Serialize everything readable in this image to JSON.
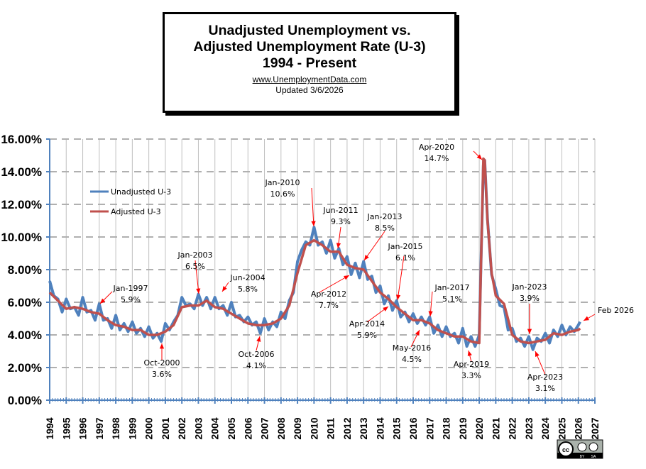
{
  "title_box": {
    "line1": "Unadjusted Unemployment vs.",
    "line2": "Adjusted Unemployment Rate (U-3)",
    "line3": "1994 - Present",
    "url": "www.UnemploymentData.com",
    "updated": "Updated  3/6/2026"
  },
  "license_badge": {
    "icon": "cc-by-sa-icon",
    "labels": [
      "BY",
      "SA"
    ]
  },
  "chart_data": {
    "type": "line",
    "title": "Unadjusted Unemployment vs. Adjusted Unemployment Rate (U-3) 1994 - Present",
    "xlabel": "",
    "ylabel": "",
    "xlim": [
      1994,
      2027
    ],
    "ylim": [
      0,
      16
    ],
    "grid": true,
    "legend_position": "top-left",
    "y_ticks": [
      "0.00%",
      "2.00%",
      "4.00%",
      "6.00%",
      "8.00%",
      "10.00%",
      "12.00%",
      "14.00%",
      "16.00%"
    ],
    "x_ticks": [
      "1994",
      "1995",
      "1996",
      "1997",
      "1998",
      "1999",
      "2000",
      "2001",
      "2002",
      "2003",
      "2004",
      "2005",
      "2006",
      "2007",
      "2008",
      "2009",
      "2010",
      "2011",
      "2012",
      "2013",
      "2014",
      "2015",
      "2016",
      "2017",
      "2018",
      "2019",
      "2020",
      "2021",
      "2022",
      "2023",
      "2024",
      "2025",
      "2026",
      "2027"
    ],
    "series": [
      {
        "name": "Unadjusted U-3",
        "color": "#4f81bd",
        "x": [
          1994.0,
          1994.25,
          1994.5,
          1994.75,
          1995.0,
          1995.25,
          1995.5,
          1995.75,
          1996.0,
          1996.25,
          1996.5,
          1996.75,
          1997.0,
          1997.25,
          1997.5,
          1997.75,
          1998.0,
          1998.25,
          1998.5,
          1998.75,
          1999.0,
          1999.25,
          1999.5,
          1999.75,
          2000.0,
          2000.25,
          2000.5,
          2000.75,
          2001.0,
          2001.25,
          2001.5,
          2001.75,
          2002.0,
          2002.25,
          2002.5,
          2002.75,
          2003.0,
          2003.25,
          2003.5,
          2003.75,
          2004.0,
          2004.25,
          2004.5,
          2004.75,
          2005.0,
          2005.25,
          2005.5,
          2005.75,
          2006.0,
          2006.25,
          2006.5,
          2006.75,
          2007.0,
          2007.25,
          2007.5,
          2007.75,
          2008.0,
          2008.25,
          2008.5,
          2008.75,
          2009.0,
          2009.25,
          2009.5,
          2009.75,
          2010.0,
          2010.25,
          2010.5,
          2010.75,
          2011.0,
          2011.25,
          2011.5,
          2011.75,
          2012.0,
          2012.25,
          2012.5,
          2012.75,
          2013.0,
          2013.25,
          2013.5,
          2013.75,
          2014.0,
          2014.25,
          2014.5,
          2014.75,
          2015.0,
          2015.25,
          2015.5,
          2015.75,
          2016.0,
          2016.25,
          2016.5,
          2016.75,
          2017.0,
          2017.25,
          2017.5,
          2017.75,
          2018.0,
          2018.25,
          2018.5,
          2018.75,
          2019.0,
          2019.25,
          2019.5,
          2019.75,
          2020.0,
          2020.25,
          2020.33,
          2020.5,
          2020.75,
          2021.0,
          2021.25,
          2021.5,
          2021.75,
          2022.0,
          2022.25,
          2022.5,
          2022.75,
          2023.0,
          2023.25,
          2023.5,
          2023.75,
          2024.0,
          2024.25,
          2024.5,
          2024.75,
          2025.0,
          2025.25,
          2025.5,
          2025.75,
          2026.0,
          2026.1
        ],
        "values": [
          7.3,
          6.4,
          6.2,
          5.4,
          6.2,
          5.6,
          5.7,
          5.2,
          6.3,
          5.4,
          5.5,
          4.9,
          5.9,
          4.9,
          5.0,
          4.4,
          5.2,
          4.3,
          4.7,
          4.2,
          4.8,
          4.1,
          4.4,
          3.9,
          4.5,
          3.8,
          4.1,
          3.6,
          4.7,
          4.3,
          4.8,
          5.2,
          6.3,
          5.8,
          5.9,
          5.6,
          6.5,
          5.8,
          6.3,
          5.6,
          6.3,
          5.6,
          5.8,
          5.2,
          6.0,
          5.1,
          5.2,
          4.8,
          5.1,
          4.6,
          4.8,
          4.1,
          5.0,
          4.3,
          4.8,
          4.5,
          5.4,
          5.0,
          6.1,
          6.6,
          8.5,
          9.2,
          9.7,
          9.5,
          10.6,
          9.5,
          9.7,
          9.0,
          9.8,
          8.7,
          9.3,
          8.3,
          8.8,
          7.7,
          8.4,
          7.5,
          8.5,
          7.4,
          7.6,
          6.6,
          7.0,
          5.9,
          6.4,
          5.5,
          6.1,
          5.1,
          5.4,
          4.8,
          5.3,
          4.7,
          5.1,
          4.6,
          5.1,
          4.1,
          4.6,
          3.9,
          4.5,
          3.9,
          4.1,
          3.5,
          4.4,
          3.3,
          3.9,
          3.3,
          4.0,
          14.4,
          14.7,
          11.1,
          7.7,
          6.8,
          5.8,
          5.7,
          4.3,
          4.4,
          3.6,
          3.8,
          3.3,
          3.9,
          3.1,
          3.8,
          3.6,
          4.1,
          3.5,
          4.3,
          3.9,
          4.6,
          4.0,
          4.5,
          4.2,
          4.6,
          4.8
        ]
      },
      {
        "name": "Adjusted U-3",
        "color": "#c0504d",
        "x": [
          1994.0,
          1994.5,
          1995.0,
          1995.5,
          1996.0,
          1996.5,
          1997.0,
          1997.5,
          1998.0,
          1998.5,
          1999.0,
          1999.5,
          2000.0,
          2000.5,
          2001.0,
          2001.5,
          2002.0,
          2002.5,
          2003.0,
          2003.5,
          2004.0,
          2004.5,
          2005.0,
          2005.5,
          2006.0,
          2006.5,
          2007.0,
          2007.5,
          2008.0,
          2008.5,
          2009.0,
          2009.5,
          2010.0,
          2010.5,
          2011.0,
          2011.5,
          2012.0,
          2012.5,
          2013.0,
          2013.5,
          2014.0,
          2014.5,
          2015.0,
          2015.5,
          2016.0,
          2016.5,
          2017.0,
          2017.5,
          2018.0,
          2018.5,
          2019.0,
          2019.5,
          2020.0,
          2020.25,
          2020.33,
          2020.5,
          2020.75,
          2021.0,
          2021.5,
          2022.0,
          2022.5,
          2023.0,
          2023.5,
          2024.0,
          2024.5,
          2025.0,
          2025.5,
          2026.0,
          2026.1
        ],
        "values": [
          6.6,
          6.1,
          5.6,
          5.7,
          5.6,
          5.4,
          5.3,
          4.9,
          4.6,
          4.5,
          4.3,
          4.3,
          4.0,
          4.0,
          4.2,
          4.6,
          5.7,
          5.8,
          5.8,
          6.1,
          5.7,
          5.6,
          5.3,
          5.0,
          4.7,
          4.6,
          4.6,
          4.7,
          5.0,
          5.8,
          7.8,
          9.5,
          9.8,
          9.5,
          9.1,
          9.1,
          8.3,
          8.1,
          8.0,
          7.3,
          6.6,
          6.2,
          5.7,
          5.3,
          4.9,
          4.9,
          4.7,
          4.3,
          4.1,
          3.9,
          3.9,
          3.6,
          3.5,
          14.8,
          14.7,
          11.0,
          7.8,
          6.4,
          5.9,
          4.0,
          3.6,
          3.5,
          3.6,
          3.7,
          4.1,
          4.0,
          4.2,
          4.3,
          4.4
        ]
      }
    ],
    "annotations": [
      {
        "label": "Jan-1997",
        "value": "5.9%"
      },
      {
        "label": "Oct-2000",
        "value": "3.6%"
      },
      {
        "label": "Jan-2003",
        "value": "6.5%"
      },
      {
        "label": "Jun-2004",
        "value": "5.8%"
      },
      {
        "label": "Oct-2006",
        "value": "4.1%"
      },
      {
        "label": "Jan-2010",
        "value": "10.6%"
      },
      {
        "label": "Jun-2011",
        "value": "9.3%"
      },
      {
        "label": "Apr-2012",
        "value": "7.7%"
      },
      {
        "label": "Jan-2013",
        "value": "8.5%"
      },
      {
        "label": "Apr-2014",
        "value": "5.9%"
      },
      {
        "label": "Jan-2015",
        "value": "6.1%"
      },
      {
        "label": "May-2016",
        "value": "4.5%"
      },
      {
        "label": "Jan-2017",
        "value": "5.1%"
      },
      {
        "label": "Apr-2019",
        "value": "3.3%"
      },
      {
        "label": "Apr-2020",
        "value": "14.7%"
      },
      {
        "label": "Jan-2023",
        "value": "3.9%"
      },
      {
        "label": "Apr-2023",
        "value": "3.1%"
      },
      {
        "label": "Feb 2026",
        "value": ""
      }
    ]
  }
}
